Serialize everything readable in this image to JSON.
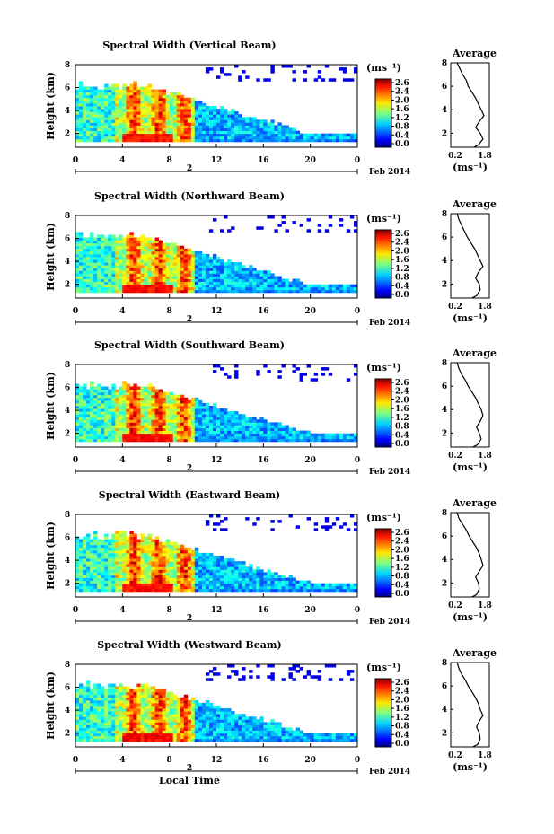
{
  "chart_data": [
    {
      "type": "heatmap",
      "title": "Spectral Width (Vertical Beam)",
      "ylabel": "Height (km)",
      "yticks": [
        "2",
        "4",
        "6",
        "8"
      ],
      "xticks": [
        "0",
        "4",
        "8",
        "12",
        "16",
        "20",
        "0"
      ],
      "date_marker": "2",
      "date_label": "Feb 2014",
      "colorbar_unit": "(ms⁻¹)",
      "colorbar_ticks": [
        "2.6",
        "2.4",
        "2.0",
        "1.6",
        "1.2",
        "0.8",
        "0.4",
        "0.0"
      ],
      "profile": {
        "title": "Average",
        "xlabel": "(ms⁻¹)",
        "xticks": [
          "0.2",
          "1.8"
        ],
        "yticks": [
          "2",
          "4",
          "6",
          "8"
        ],
        "height_km": [
          0.8,
          1.0,
          1.5,
          2.0,
          2.5,
          3.0,
          3.5,
          4.0,
          4.5,
          5.0,
          5.5,
          6.0,
          6.5,
          7.0,
          7.5,
          8.0
        ],
        "width_ms": [
          1.2,
          1.45,
          1.7,
          1.55,
          1.3,
          1.5,
          1.75,
          1.6,
          1.45,
          1.3,
          1.1,
          0.9,
          0.8,
          0.6,
          0.45,
          0.3
        ]
      }
    },
    {
      "type": "heatmap",
      "title": "Spectral Width (Northward Beam)",
      "ylabel": "Height (km)",
      "yticks": [
        "2",
        "4",
        "6",
        "8"
      ],
      "xticks": [
        "0",
        "4",
        "8",
        "12",
        "16",
        "20",
        "0"
      ],
      "date_marker": "2",
      "date_label": "Feb 2014",
      "colorbar_unit": "(ms⁻¹)",
      "colorbar_ticks": [
        "2.6",
        "2.4",
        "2.0",
        "1.6",
        "1.2",
        "0.8",
        "0.4",
        "0.0"
      ],
      "profile": {
        "title": "Average",
        "xlabel": "(ms⁻¹)",
        "xticks": [
          "0.2",
          "1.8"
        ],
        "yticks": [
          "2",
          "4",
          "6",
          "8"
        ],
        "height_km": [
          0.8,
          1.0,
          1.5,
          2.0,
          2.5,
          3.0,
          3.5,
          4.0,
          4.5,
          5.0,
          5.5,
          6.0,
          6.5,
          7.0,
          7.5,
          8.0
        ],
        "width_ms": [
          1.1,
          1.35,
          1.55,
          1.5,
          1.3,
          1.45,
          1.7,
          1.55,
          1.4,
          1.25,
          1.05,
          0.85,
          0.7,
          0.55,
          0.4,
          0.3
        ]
      }
    },
    {
      "type": "heatmap",
      "title": "Spectral Width (Southward Beam)",
      "ylabel": "Height (km)",
      "yticks": [
        "2",
        "4",
        "6",
        "8"
      ],
      "xticks": [
        "0",
        "4",
        "8",
        "12",
        "16",
        "20",
        "0"
      ],
      "date_marker": "2",
      "date_label": "Feb 2014",
      "colorbar_unit": "(ms⁻¹)",
      "colorbar_ticks": [
        "2.6",
        "2.4",
        "2.0",
        "1.6",
        "1.2",
        "0.8",
        "0.4",
        "0.0"
      ],
      "profile": {
        "title": "Average",
        "xlabel": "(ms⁻¹)",
        "xticks": [
          "0.2",
          "1.8"
        ],
        "yticks": [
          "2",
          "4",
          "6",
          "8"
        ],
        "height_km": [
          0.8,
          1.0,
          1.5,
          2.0,
          2.5,
          3.0,
          3.5,
          4.0,
          4.5,
          5.0,
          5.5,
          6.0,
          6.5,
          7.0,
          7.5,
          8.0
        ],
        "width_ms": [
          1.15,
          1.4,
          1.6,
          1.5,
          1.35,
          1.55,
          1.7,
          1.6,
          1.45,
          1.3,
          1.1,
          0.9,
          0.75,
          0.55,
          0.4,
          0.3
        ]
      }
    },
    {
      "type": "heatmap",
      "title": "Spectral Width (Eastward Beam)",
      "ylabel": "Height (km)",
      "yticks": [
        "2",
        "4",
        "6",
        "8"
      ],
      "xticks": [
        "0",
        "4",
        "8",
        "12",
        "16",
        "20",
        "0"
      ],
      "date_marker": "2",
      "date_label": "Feb 2014",
      "colorbar_unit": "(ms⁻¹)",
      "colorbar_ticks": [
        "2.6",
        "2.4",
        "2.0",
        "1.6",
        "1.2",
        "0.8",
        "0.4",
        "0.0"
      ],
      "profile": {
        "title": "Average",
        "xlabel": "(ms⁻¹)",
        "xticks": [
          "0.2",
          "1.8"
        ],
        "yticks": [
          "2",
          "4",
          "6",
          "8"
        ],
        "height_km": [
          0.8,
          1.0,
          1.5,
          2.0,
          2.5,
          3.0,
          3.5,
          4.0,
          4.5,
          5.0,
          5.5,
          6.0,
          6.5,
          7.0,
          7.5,
          8.0
        ],
        "width_ms": [
          1.1,
          1.35,
          1.5,
          1.45,
          1.3,
          1.5,
          1.7,
          1.6,
          1.5,
          1.35,
          1.15,
          0.95,
          0.8,
          0.6,
          0.4,
          0.3
        ]
      }
    },
    {
      "type": "heatmap",
      "title": "Spectral Width (Westward Beam)",
      "ylabel": "Height (km)",
      "yticks": [
        "2",
        "4",
        "6",
        "8"
      ],
      "xticks": [
        "0",
        "4",
        "8",
        "12",
        "16",
        "20",
        "0"
      ],
      "date_marker": "2",
      "date_label": "Feb 2014",
      "xlabel": "Local Time",
      "colorbar_unit": "(ms⁻¹)",
      "colorbar_ticks": [
        "2.6",
        "2.4",
        "2.0",
        "1.6",
        "1.2",
        "0.8",
        "0.4",
        "0.0"
      ],
      "profile": {
        "title": "Average",
        "xlabel": "(ms⁻¹)",
        "xticks": [
          "0.2",
          "1.8"
        ],
        "yticks": [
          "2",
          "4",
          "6",
          "8"
        ],
        "height_km": [
          0.8,
          1.0,
          1.5,
          2.0,
          2.5,
          3.0,
          3.5,
          4.0,
          4.5,
          5.0,
          5.5,
          6.0,
          6.5,
          7.0,
          7.5,
          8.0
        ],
        "width_ms": [
          1.15,
          1.4,
          1.55,
          1.5,
          1.35,
          1.5,
          1.7,
          1.55,
          1.45,
          1.3,
          1.1,
          0.9,
          0.75,
          0.55,
          0.4,
          0.3
        ]
      }
    }
  ]
}
